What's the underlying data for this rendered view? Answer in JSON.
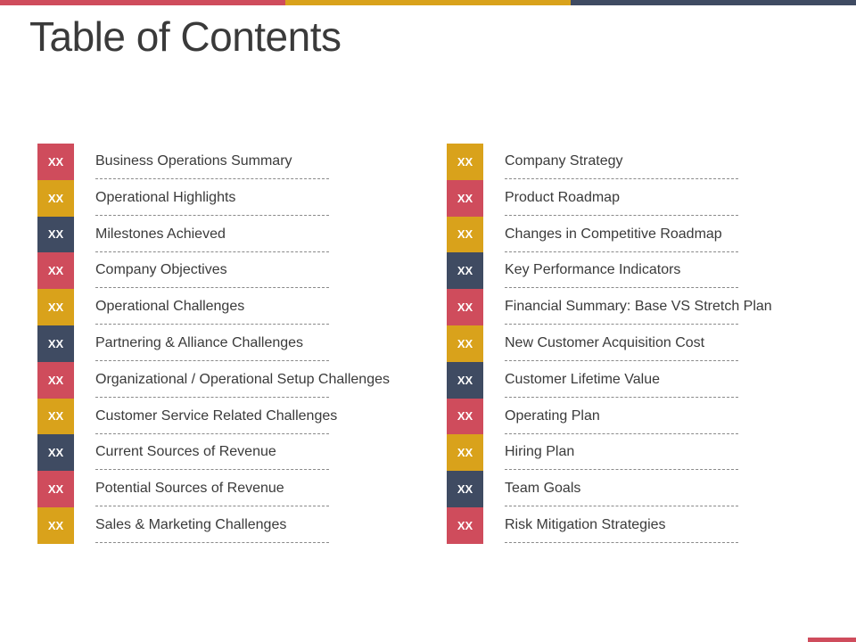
{
  "colors": {
    "red": "#cf4c5c",
    "gold": "#d9a21b",
    "navy": "#3f4b62"
  },
  "topbar": [
    "#cf4c5c",
    "#d9a21b",
    "#3f4b62"
  ],
  "title": "Table of Contents",
  "left_items": [
    {
      "badge": "XX",
      "label": "Business Operations Summary",
      "color": "#cf4c5c"
    },
    {
      "badge": "XX",
      "label": "Operational Highlights",
      "color": "#d9a21b"
    },
    {
      "badge": "XX",
      "label": "Milestones Achieved",
      "color": "#3f4b62"
    },
    {
      "badge": "XX",
      "label": "Company Objectives",
      "color": "#cf4c5c"
    },
    {
      "badge": "XX",
      "label": "Operational Challenges",
      "color": "#d9a21b"
    },
    {
      "badge": "XX",
      "label": "Partnering & Alliance Challenges",
      "color": "#3f4b62"
    },
    {
      "badge": "XX",
      "label": "Organizational / Operational Setup Challenges",
      "color": "#cf4c5c"
    },
    {
      "badge": "XX",
      "label": "Customer Service Related Challenges",
      "color": "#d9a21b"
    },
    {
      "badge": "XX",
      "label": "Current Sources of Revenue",
      "color": "#3f4b62"
    },
    {
      "badge": "XX",
      "label": "Potential Sources of Revenue",
      "color": "#cf4c5c"
    },
    {
      "badge": "XX",
      "label": "Sales & Marketing Challenges",
      "color": "#d9a21b"
    }
  ],
  "right_items": [
    {
      "badge": "XX",
      "label": "Company Strategy",
      "color": "#d9a21b"
    },
    {
      "badge": "XX",
      "label": "Product Roadmap",
      "color": "#cf4c5c"
    },
    {
      "badge": "XX",
      "label": "Changes in Competitive Roadmap",
      "color": "#d9a21b"
    },
    {
      "badge": "XX",
      "label": "Key Performance Indicators",
      "color": "#3f4b62"
    },
    {
      "badge": "XX",
      "label": "Financial Summary: Base VS Stretch Plan",
      "color": "#cf4c5c"
    },
    {
      "badge": "XX",
      "label": "New Customer Acquisition Cost",
      "color": "#d9a21b"
    },
    {
      "badge": "XX",
      "label": "Customer Lifetime Value",
      "color": "#3f4b62"
    },
    {
      "badge": "XX",
      "label": "Operating Plan",
      "color": "#cf4c5c"
    },
    {
      "badge": "XX",
      "label": "Hiring Plan",
      "color": "#d9a21b"
    },
    {
      "badge": "XX",
      "label": "Team Goals",
      "color": "#3f4b62"
    },
    {
      "badge": "XX",
      "label": "Risk Mitigation Strategies",
      "color": "#cf4c5c"
    }
  ],
  "corner_color": "#cf4c5c"
}
